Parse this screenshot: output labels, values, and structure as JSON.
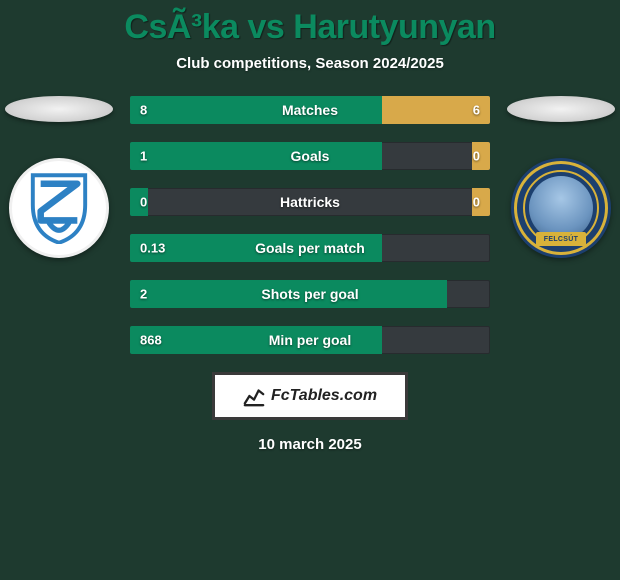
{
  "title": "CsÃ³ka vs Harutyunyan",
  "subtitle": "Club competitions, Season 2024/2025",
  "footer_date": "10 march 2025",
  "brand": {
    "text": "FcTables.com"
  },
  "colors": {
    "bg": "#1e3a2f",
    "title": "#0b8a5f",
    "left_series": "#0b8a5f",
    "right_series": "#d8a94a",
    "bar_track": "#353a3e",
    "text": "#ffffff",
    "brand_border": "#3a3a3a",
    "brand_bg": "#ffffff"
  },
  "badges": {
    "left": {
      "name": "ZTE",
      "bg": "#ffffff",
      "accent": "#2d81c4"
    },
    "right": {
      "name": "Puskás Akadémia",
      "bg": "#1c3f6e",
      "gold": "#d8b23a",
      "ribbon_text": "FELCSÚT"
    }
  },
  "stats": [
    {
      "label": "Matches",
      "left_value": "8",
      "right_value": "6",
      "left_pct": 70,
      "right_pct": 30
    },
    {
      "label": "Goals",
      "left_value": "1",
      "right_value": "0",
      "left_pct": 70,
      "right_pct": 5
    },
    {
      "label": "Hattricks",
      "left_value": "0",
      "right_value": "0",
      "left_pct": 5,
      "right_pct": 5
    },
    {
      "label": "Goals per match",
      "left_value": "0.13",
      "right_value": "",
      "left_pct": 70,
      "right_pct": 0
    },
    {
      "label": "Shots per goal",
      "left_value": "2",
      "right_value": "",
      "left_pct": 88,
      "right_pct": 0
    },
    {
      "label": "Min per goal",
      "left_value": "868",
      "right_value": "",
      "left_pct": 70,
      "right_pct": 0
    }
  ]
}
